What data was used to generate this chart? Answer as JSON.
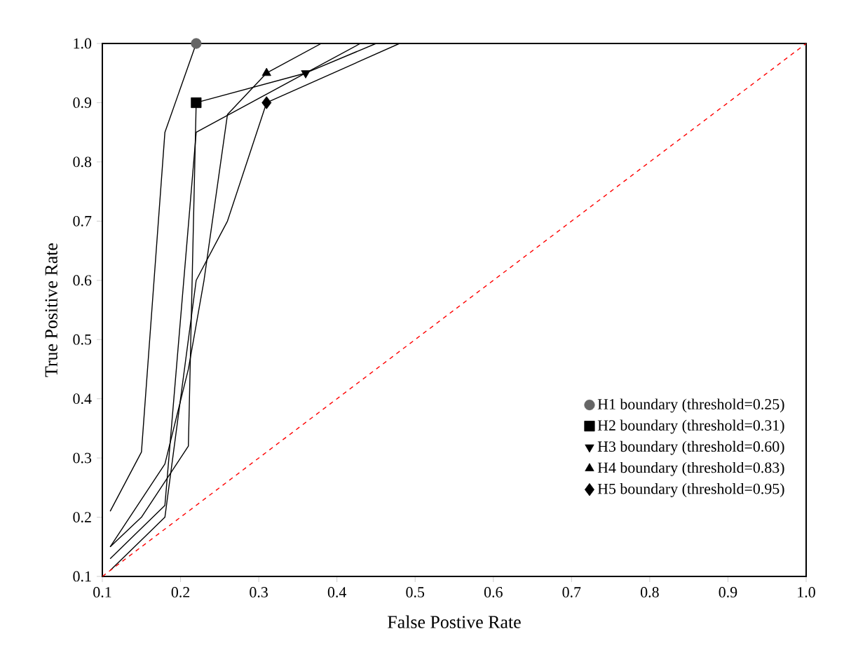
{
  "chart_data": {
    "type": "line",
    "xlabel": "False Postive Rate",
    "ylabel": "True Positive Rate",
    "xlim": [
      0.1,
      1.0
    ],
    "ylim": [
      0.1,
      1.0
    ],
    "xticks": [
      {
        "value": 0.1,
        "label": "0.1"
      },
      {
        "value": 0.2,
        "label": "0.2"
      },
      {
        "value": 0.3,
        "label": "0.3"
      },
      {
        "value": 0.4,
        "label": "0.4"
      },
      {
        "value": 0.5,
        "label": "0.5"
      },
      {
        "value": 0.6,
        "label": "0.6"
      },
      {
        "value": 0.7,
        "label": "0.7"
      },
      {
        "value": 0.8,
        "label": "0.8"
      },
      {
        "value": 0.9,
        "label": "0.9"
      },
      {
        "value": 1.0,
        "label": "1.0"
      }
    ],
    "yticks": [
      {
        "value": 0.1,
        "label": "0.1"
      },
      {
        "value": 0.2,
        "label": "0.2"
      },
      {
        "value": 0.3,
        "label": "0.3"
      },
      {
        "value": 0.4,
        "label": "0.4"
      },
      {
        "value": 0.5,
        "label": "0.5"
      },
      {
        "value": 0.6,
        "label": "0.6"
      },
      {
        "value": 0.7,
        "label": "0.7"
      },
      {
        "value": 0.8,
        "label": "0.8"
      },
      {
        "value": 0.9,
        "label": "0.9"
      },
      {
        "value": 1.0,
        "label": "1.0"
      }
    ],
    "legend": "bottom right",
    "series": [
      {
        "type": "line",
        "color": "#000000",
        "x": [
          0.11,
          0.15,
          0.18,
          0.22,
          1.0
        ],
        "values": [
          0.21,
          0.31,
          0.85,
          1.0,
          1.0
        ]
      },
      {
        "type": "line",
        "color": "#000000",
        "x": [
          0.11,
          0.15,
          0.21,
          0.22,
          0.36,
          0.43,
          1.0
        ],
        "values": [
          0.15,
          0.2,
          0.32,
          0.9,
          0.95,
          1.0,
          1.0
        ]
      },
      {
        "type": "line",
        "color": "#000000",
        "x": [
          0.11,
          0.18,
          0.22,
          0.36,
          0.45,
          1.0
        ],
        "values": [
          0.13,
          0.22,
          0.85,
          0.95,
          1.0,
          1.0
        ]
      },
      {
        "type": "line",
        "color": "#000000",
        "x": [
          0.11,
          0.18,
          0.21,
          0.23,
          0.26,
          0.31,
          0.38,
          1.0
        ],
        "values": [
          0.15,
          0.29,
          0.45,
          0.6,
          0.88,
          0.95,
          1.0,
          1.0
        ]
      },
      {
        "type": "line",
        "color": "#000000",
        "x": [
          0.11,
          0.18,
          0.22,
          0.26,
          0.31,
          0.48,
          1.0
        ],
        "values": [
          0.11,
          0.2,
          0.6,
          0.7,
          0.9,
          1.0,
          1.0
        ]
      },
      {
        "type": "line",
        "color": "#ff0000",
        "line_style": "dashed",
        "x": [
          0.1,
          1.0
        ],
        "values": [
          0.1,
          1.0
        ]
      },
      {
        "type": "scatter",
        "name": "H1 boundary (threshold=0.25)",
        "color": "#666666",
        "marker": "circle",
        "x": [
          0.22
        ],
        "values": [
          1.0
        ]
      },
      {
        "type": "scatter",
        "name": "H2 boundary (threshold=0.31)",
        "color": "#000000",
        "marker": "square",
        "x": [
          0.22
        ],
        "values": [
          0.9
        ]
      },
      {
        "type": "scatter",
        "name": "H3 boundary (threshold=0.60)",
        "color": "#000000",
        "marker": "triangle-down",
        "x": [
          0.36
        ],
        "values": [
          0.95
        ]
      },
      {
        "type": "scatter",
        "name": "H4 boundary (threshold=0.83)",
        "color": "#000000",
        "marker": "triangle",
        "x": [
          0.31
        ],
        "values": [
          0.95
        ]
      },
      {
        "type": "scatter",
        "name": "H5 boundary (threshold=0.95)",
        "color": "#000000",
        "marker": "diamond",
        "x": [
          0.31
        ],
        "values": [
          0.9
        ]
      }
    ]
  }
}
